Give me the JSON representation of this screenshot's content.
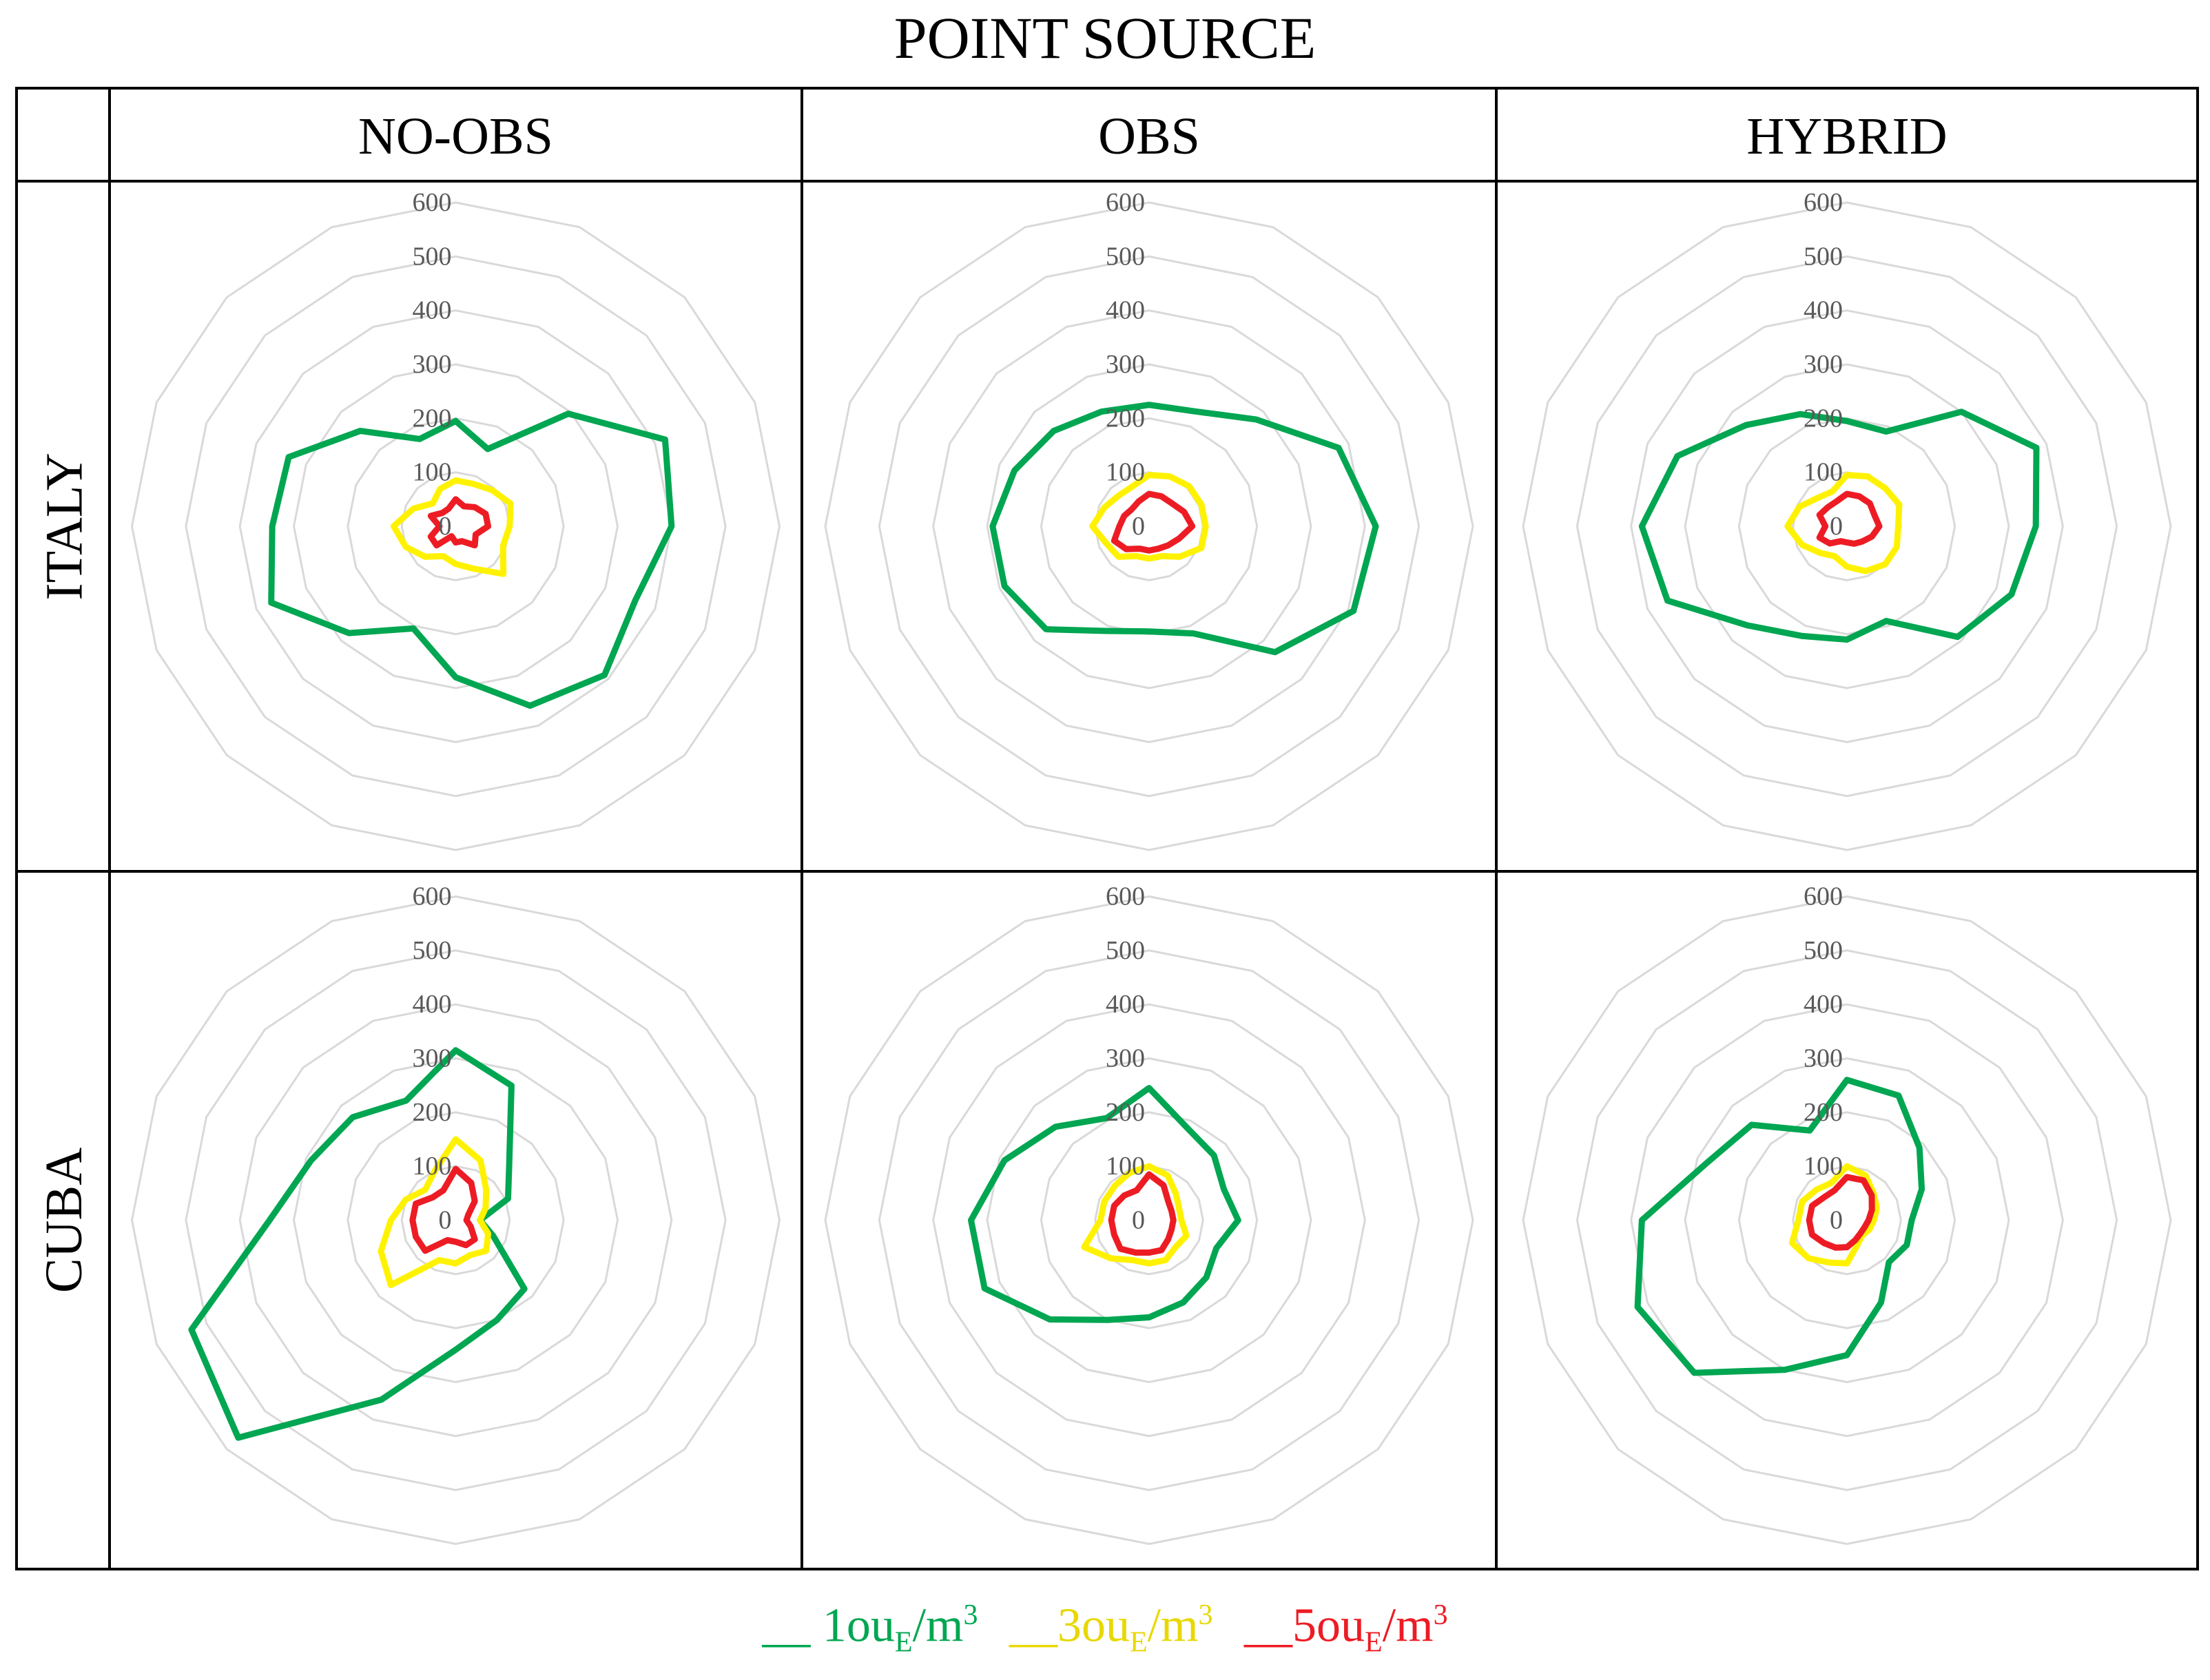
{
  "title": "POINT SOURCE",
  "columns": [
    "NO-OBS",
    "OBS",
    "HYBRID"
  ],
  "rows": [
    "ITALY",
    "CUBA"
  ],
  "legend": [
    {
      "lead": "__ ",
      "pre": "1ou",
      "sub": "E",
      "mid": "/m",
      "sup": "3",
      "color": "#00A651"
    },
    {
      "lead": "__",
      "pre": "3ou",
      "sub": "E",
      "mid": "/m",
      "sup": "3",
      "color": "#FFF200"
    },
    {
      "lead": "__",
      "pre": "5ou",
      "sub": "E",
      "mid": "/m",
      "sup": "3",
      "color": "#ED1C24"
    }
  ],
  "chart_data": {
    "type": "radar",
    "title": "POINT SOURCE",
    "directions": 16,
    "direction_start": "north",
    "direction_order": "clockwise",
    "axis_ticks": [
      "0",
      "100",
      "200",
      "300",
      "400",
      "500",
      "600"
    ],
    "rmax": 600,
    "grid_color": "#D9D9D9",
    "series_names": [
      "1ouE/m3",
      "3ouE/m3",
      "5ouE/m3"
    ],
    "series_colors": [
      "#00A651",
      "#FFF200",
      "#ED1C24"
    ],
    "panels": [
      {
        "row": "ITALY",
        "column": "NO-OBS",
        "series": [
          {
            "name": "1ouE/m3",
            "values": [
              195,
              155,
              295,
              420,
              400,
              360,
              390,
              360,
              280,
              205,
              280,
              370,
              340,
              335,
              250,
              175
            ]
          },
          {
            "name": "3ouE/m3",
            "values": [
              85,
              85,
              95,
              110,
              100,
              95,
              125,
              85,
              70,
              60,
              80,
              100,
              115,
              85,
              60,
              75
            ]
          },
          {
            "name": "5ouE/m3",
            "values": [
              50,
              40,
              50,
              60,
              60,
              40,
              50,
              30,
              30,
              20,
              50,
              50,
              30,
              50,
              35,
              35
            ]
          }
        ]
      },
      {
        "row": "ITALY",
        "column": "OBS",
        "series": [
          {
            "name": "1ouE/m3",
            "values": [
              225,
              230,
              280,
              380,
              420,
              410,
              330,
              215,
              195,
              210,
              270,
              290,
              290,
              270,
              250,
              230
            ]
          },
          {
            "name": "3ouE/m3",
            "values": [
              95,
              100,
              105,
              105,
              105,
              105,
              80,
              60,
              60,
              60,
              80,
              85,
              105,
              90,
              80,
              80
            ]
          },
          {
            "name": "5ouE/m3",
            "values": [
              60,
              60,
              60,
              70,
              80,
              60,
              50,
              45,
              45,
              45,
              60,
              70,
              55,
              50,
              45,
              50
            ]
          }
        ]
      },
      {
        "row": "ITALY",
        "column": "HYBRID",
        "series": [
          {
            "name": "1ouE/m3",
            "values": [
              195,
              190,
              300,
              380,
              350,
              330,
              290,
              190,
              210,
              220,
              260,
              360,
              380,
              340,
              265,
              225
            ]
          },
          {
            "name": "3ouE/m3",
            "values": [
              95,
              100,
              100,
              105,
              95,
              100,
              100,
              90,
              75,
              60,
              70,
              90,
              110,
              95,
              75,
              70
            ]
          },
          {
            "name": "5ouE/m3",
            "values": [
              60,
              60,
              60,
              55,
              60,
              50,
              40,
              35,
              30,
              30,
              45,
              55,
              40,
              55,
              50,
              50
            ]
          }
        ]
      },
      {
        "row": "CUBA",
        "column": "NO-OBS",
        "series": [
          {
            "name": "1ouE/m3",
            "values": [
              315,
              270,
              140,
              105,
              45,
              75,
              180,
              200,
              240,
              360,
              570,
              530,
              345,
              290,
              270,
              240
            ]
          },
          {
            "name": "3ouE/m3",
            "values": [
              150,
              120,
              80,
              60,
              45,
              65,
              80,
              70,
              80,
              80,
              170,
              150,
              120,
              100,
              80,
              100
            ]
          },
          {
            "name": "5ouE/m3",
            "values": [
              95,
              75,
              50,
              25,
              20,
              30,
              50,
              50,
              40,
              40,
              80,
              80,
              80,
              80,
              60,
              60
            ]
          }
        ]
      },
      {
        "row": "CUBA",
        "column": "OBS",
        "series": [
          {
            "name": "1ouE/m3",
            "values": [
              245,
              185,
              170,
              150,
              165,
              135,
              150,
              165,
              180,
              200,
              260,
              330,
              330,
              290,
              245,
              205
            ]
          },
          {
            "name": "3ouE/m3",
            "values": [
              100,
              90,
              70,
              60,
              60,
              75,
              70,
              80,
              80,
              80,
              100,
              130,
              90,
              90,
              90,
              95
            ]
          },
          {
            "name": "5ouE/m3",
            "values": [
              85,
              70,
              50,
              45,
              45,
              45,
              50,
              60,
              60,
              65,
              75,
              70,
              70,
              70,
              65,
              60
            ]
          }
        ]
      },
      {
        "row": "CUBA",
        "column": "HYBRID",
        "series": [
          {
            "name": "1ouE/m3",
            "values": [
              260,
              250,
              190,
              150,
              120,
              120,
              110,
              165,
              250,
              300,
              400,
              420,
              380,
              280,
              250,
              180
            ]
          },
          {
            "name": "3ouE/m3",
            "values": [
              100,
              90,
              70,
              60,
              50,
              45,
              40,
              50,
              80,
              85,
              100,
              110,
              90,
              90,
              80,
              75
            ]
          },
          {
            "name": "5ouE/m3",
            "values": [
              80,
              80,
              65,
              50,
              40,
              35,
              35,
              40,
              50,
              55,
              60,
              70,
              70,
              70,
              60,
              60
            ]
          }
        ]
      }
    ]
  }
}
